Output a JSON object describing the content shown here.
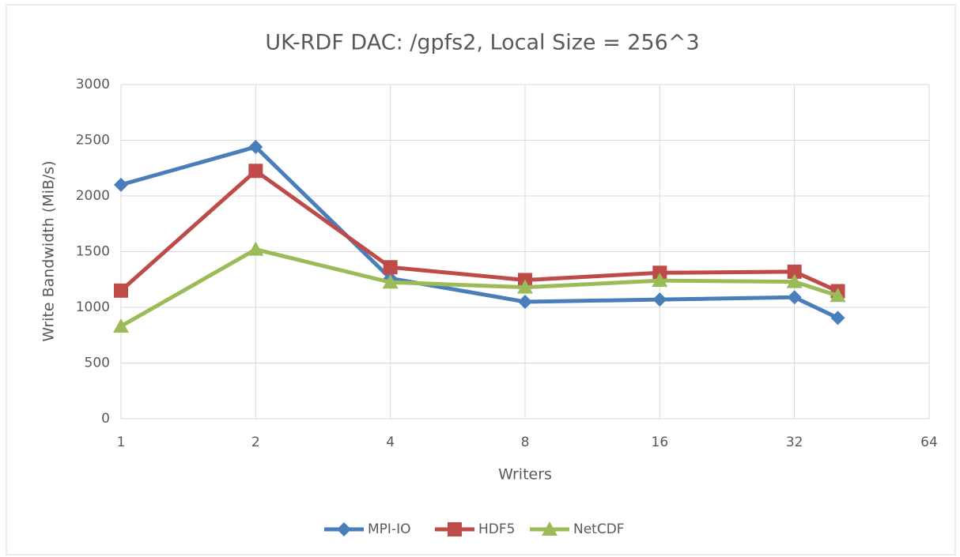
{
  "chart_data": {
    "type": "line",
    "title": "UK-RDF DAC: /gpfs2, Local Size = 256^3",
    "xlabel": "Writers",
    "ylabel": "Write Bandwidth (MiB/s)",
    "x": [
      1,
      2,
      4,
      8,
      16,
      32,
      40
    ],
    "xscale": "log",
    "xlim": [
      1,
      64
    ],
    "xticks": [
      1,
      2,
      4,
      8,
      16,
      32,
      64
    ],
    "ylim": [
      0,
      3000
    ],
    "yticks": [
      0,
      500,
      1000,
      1500,
      2000,
      2500,
      3000
    ],
    "grid": true,
    "legend": "bottom",
    "series": [
      {
        "name": "MPI-IO",
        "color": "#4a7ebb",
        "marker": "diamond",
        "values": [
          2100,
          2440,
          1260,
          1050,
          1070,
          1090,
          905
        ]
      },
      {
        "name": "HDF5",
        "color": "#be4b48",
        "marker": "square",
        "values": [
          1150,
          2225,
          1360,
          1245,
          1310,
          1320,
          1145
        ]
      },
      {
        "name": "NetCDF",
        "color": "#9bbb59",
        "marker": "triangle",
        "values": [
          830,
          1520,
          1225,
          1180,
          1240,
          1230,
          1105
        ]
      }
    ]
  }
}
